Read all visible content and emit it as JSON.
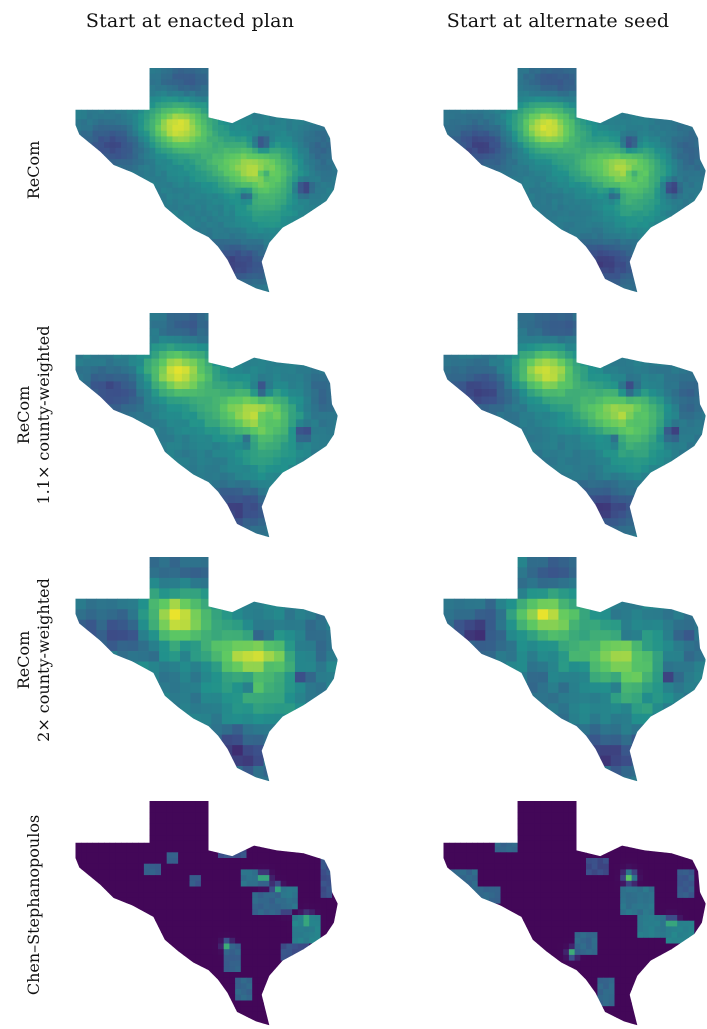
{
  "columns": [
    {
      "title": "Start at enacted plan"
    },
    {
      "title": "Start at alternate seed"
    }
  ],
  "rows": [
    {
      "label_lines": [
        "ReCom"
      ],
      "style": "smooth"
    },
    {
      "label_lines": [
        "ReCom",
        "1.1× county-weighted"
      ],
      "style": "county1"
    },
    {
      "label_lines": [
        "ReCom",
        "2× county-weighted"
      ],
      "style": "county2"
    },
    {
      "label_lines": [
        "Chen–Stephanopoulos"
      ],
      "style": "cs"
    }
  ],
  "colors": {
    "viridis_dark": "#440154",
    "viridis_blue": "#3b528b",
    "viridis_teal": "#21918c",
    "viridis_green": "#5ec962",
    "viridis_yellow": "#fde725"
  }
}
